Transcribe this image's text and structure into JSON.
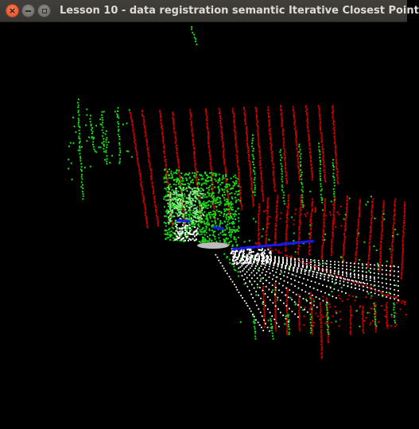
{
  "window": {
    "title": "Lesson 10 - data registration semantic Iterative Closest Point",
    "close_glyph": "×",
    "controls": {
      "close_icon": "close-icon",
      "minimize_icon": "minimize-icon",
      "maximize_icon": "maximize-icon"
    }
  },
  "viewport": {
    "background": "#000000",
    "content": "3d-point-cloud",
    "colors": {
      "model_points": "#d40000",
      "data_points": "#16dd16",
      "laser_rays": "#ffffff",
      "trajectory": "#1a1ae8",
      "sensor_origin": "#bdbdbd"
    }
  }
}
